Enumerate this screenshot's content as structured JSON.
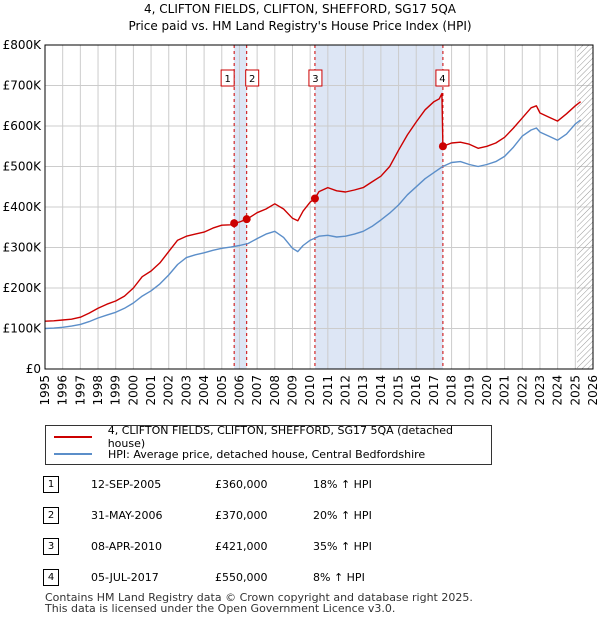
{
  "chart_data": {
    "type": "line",
    "title": "4, CLIFTON FIELDS, CLIFTON, SHEFFORD, SG17 5QA",
    "subtitle": "Price paid vs. HM Land Registry's House Price Index (HPI)",
    "xlabel": "",
    "ylabel": "",
    "xlim": [
      1995,
      2026
    ],
    "ylim": [
      0,
      800000
    ],
    "grid": true,
    "y_ticks": [
      {
        "value": 0,
        "label": "£0"
      },
      {
        "value": 100000,
        "label": "£100K"
      },
      {
        "value": 200000,
        "label": "£200K"
      },
      {
        "value": 300000,
        "label": "£300K"
      },
      {
        "value": 400000,
        "label": "£400K"
      },
      {
        "value": 500000,
        "label": "£500K"
      },
      {
        "value": 600000,
        "label": "£600K"
      },
      {
        "value": 700000,
        "label": "£700K"
      },
      {
        "value": 800000,
        "label": "£800K"
      }
    ],
    "x_ticks": [
      "1995",
      "1996",
      "1997",
      "1998",
      "1999",
      "2000",
      "2001",
      "2002",
      "2003",
      "2004",
      "2005",
      "2006",
      "2007",
      "2008",
      "2009",
      "2010",
      "2011",
      "2012",
      "2013",
      "2014",
      "2015",
      "2016",
      "2017",
      "2018",
      "2019",
      "2020",
      "2021",
      "2022",
      "2023",
      "2024",
      "2025",
      "2026"
    ],
    "projection_start": 2025.1,
    "series": [
      {
        "name": "4, CLIFTON FIELDS, CLIFTON, SHEFFORD, SG17 5QA (detached house)",
        "color": "#cc0000",
        "x": [
          1995.0,
          1995.5,
          1996.0,
          1996.5,
          1997.0,
          1997.5,
          1998.0,
          1998.5,
          1999.0,
          1999.5,
          2000.0,
          2000.5,
          2001.0,
          2001.5,
          2002.0,
          2002.5,
          2003.0,
          2003.5,
          2004.0,
          2004.5,
          2005.0,
          2005.5,
          2005.7,
          2006.0,
          2006.41,
          2006.5,
          2007.0,
          2007.5,
          2008.0,
          2008.5,
          2009.0,
          2009.3,
          2009.6,
          2010.0,
          2010.27,
          2010.5,
          2011.0,
          2011.5,
          2012.0,
          2012.5,
          2013.0,
          2013.5,
          2014.0,
          2014.5,
          2015.0,
          2015.5,
          2016.0,
          2016.5,
          2017.0,
          2017.3,
          2017.45,
          2017.51,
          2018.0,
          2018.5,
          2019.0,
          2019.5,
          2020.0,
          2020.5,
          2021.0,
          2021.5,
          2022.0,
          2022.5,
          2022.8,
          2023.0,
          2023.5,
          2024.0,
          2024.5,
          2025.0,
          2025.3
        ],
        "values": [
          118000,
          119000,
          121000,
          123000,
          128000,
          138000,
          150000,
          160000,
          168000,
          180000,
          200000,
          228000,
          242000,
          262000,
          290000,
          318000,
          328000,
          333000,
          338000,
          348000,
          355000,
          356000,
          360000,
          363000,
          370000,
          372000,
          386000,
          395000,
          408000,
          395000,
          372000,
          366000,
          390000,
          412000,
          421000,
          438000,
          448000,
          440000,
          437000,
          442000,
          448000,
          462000,
          476000,
          500000,
          540000,
          578000,
          610000,
          640000,
          660000,
          667000,
          680000,
          550000,
          558000,
          560000,
          555000,
          545000,
          550000,
          558000,
          572000,
          595000,
          620000,
          645000,
          650000,
          632000,
          622000,
          612000,
          630000,
          650000,
          660000
        ]
      },
      {
        "name": "HPI: Average price, detached house, Central Bedfordshire",
        "color": "#5b8ec9",
        "x": [
          1995.0,
          1995.5,
          1996.0,
          1996.5,
          1997.0,
          1997.5,
          1998.0,
          1998.5,
          1999.0,
          1999.5,
          2000.0,
          2000.5,
          2001.0,
          2001.5,
          2002.0,
          2002.5,
          2003.0,
          2003.5,
          2004.0,
          2004.5,
          2005.0,
          2005.5,
          2006.0,
          2006.5,
          2007.0,
          2007.5,
          2008.0,
          2008.5,
          2009.0,
          2009.3,
          2009.6,
          2010.0,
          2010.5,
          2011.0,
          2011.5,
          2012.0,
          2012.5,
          2013.0,
          2013.5,
          2014.0,
          2014.5,
          2015.0,
          2015.5,
          2016.0,
          2016.5,
          2017.0,
          2017.5,
          2018.0,
          2018.5,
          2019.0,
          2019.5,
          2020.0,
          2020.5,
          2021.0,
          2021.5,
          2022.0,
          2022.5,
          2022.8,
          2023.0,
          2023.5,
          2024.0,
          2024.5,
          2025.0,
          2025.3
        ],
        "values": [
          100000,
          101000,
          103000,
          106000,
          110000,
          117000,
          126000,
          133000,
          140000,
          150000,
          163000,
          180000,
          193000,
          210000,
          232000,
          258000,
          275000,
          282000,
          287000,
          293000,
          298000,
          301000,
          305000,
          310000,
          322000,
          333000,
          340000,
          325000,
          298000,
          290000,
          305000,
          318000,
          328000,
          330000,
          326000,
          328000,
          333000,
          340000,
          352000,
          368000,
          385000,
          405000,
          430000,
          450000,
          470000,
          485000,
          500000,
          510000,
          512000,
          505000,
          500000,
          505000,
          512000,
          525000,
          548000,
          575000,
          590000,
          595000,
          585000,
          575000,
          565000,
          580000,
          605000,
          615000
        ]
      }
    ],
    "transactions": [
      {
        "marker": "1",
        "x": 2005.7,
        "value": 360000,
        "date": "12-SEP-2005",
        "price": "£360,000",
        "hpi_change": "18% ↑ HPI"
      },
      {
        "marker": "2",
        "x": 2006.41,
        "value": 370000,
        "date": "31-MAY-2006",
        "price": "£370,000",
        "hpi_change": "20% ↑ HPI"
      },
      {
        "marker": "3",
        "x": 2010.27,
        "value": 421000,
        "date": "08-APR-2010",
        "price": "£421,000",
        "hpi_change": "35% ↑ HPI"
      },
      {
        "marker": "4",
        "x": 2017.51,
        "value": 550000,
        "date": "05-JUL-2017",
        "price": "£550,000",
        "hpi_change": "8% ↑ HPI"
      }
    ],
    "colors": {
      "property": "#cc0000",
      "hpi": "#5b8ec9",
      "highlight": "#dde6f5",
      "marker_line": "#cc0000",
      "grid": "#cccccc"
    }
  },
  "legend": {
    "property_label": "4, CLIFTON FIELDS, CLIFTON, SHEFFORD, SG17 5QA (detached house)",
    "hpi_label": "HPI: Average price, detached house, Central Bedfordshire"
  },
  "footer": {
    "line1": "Contains HM Land Registry data © Crown copyright and database right 2025.",
    "line2": "This data is licensed under the Open Government Licence v3.0."
  }
}
